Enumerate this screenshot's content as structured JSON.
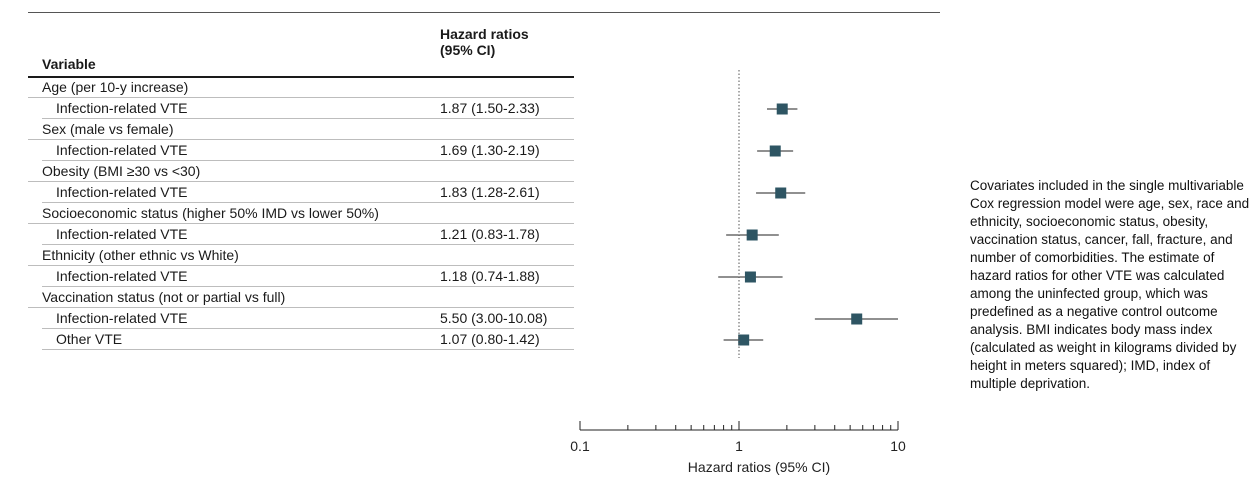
{
  "table": {
    "header_variable": "Variable",
    "header_hr_line1": "Hazard ratios",
    "header_hr_line2": "(95% CI)"
  },
  "chart_data": {
    "type": "forest",
    "xlabel": "Hazard ratios (95% CI)",
    "xscale": "log",
    "xlim": [
      0.1,
      10
    ],
    "xticks": [
      0.1,
      1,
      10
    ],
    "xtick_labels": [
      "0.1",
      "1",
      "10"
    ],
    "reference_line": 1,
    "marker_color": "#2e5563",
    "rows": [
      {
        "kind": "category",
        "label": "Age (per 10-y increase)"
      },
      {
        "kind": "estimate",
        "label": "Infection-related VTE",
        "text": "1.87 (1.50-2.33)",
        "hr": 1.87,
        "lo": 1.5,
        "hi": 2.33
      },
      {
        "kind": "category",
        "label": "Sex (male vs female)"
      },
      {
        "kind": "estimate",
        "label": "Infection-related VTE",
        "text": "1.69 (1.30-2.19)",
        "hr": 1.69,
        "lo": 1.3,
        "hi": 2.19
      },
      {
        "kind": "category",
        "label": "Obesity (BMI ≥30 vs <30)"
      },
      {
        "kind": "estimate",
        "label": "Infection-related VTE",
        "text": "1.83 (1.28-2.61)",
        "hr": 1.83,
        "lo": 1.28,
        "hi": 2.61
      },
      {
        "kind": "category",
        "label": "Socioeconomic status (higher 50% IMD vs lower 50%)"
      },
      {
        "kind": "estimate",
        "label": "Infection-related VTE",
        "text": "1.21 (0.83-1.78)",
        "hr": 1.21,
        "lo": 0.83,
        "hi": 1.78
      },
      {
        "kind": "category",
        "label": "Ethnicity (other ethnic vs White)"
      },
      {
        "kind": "estimate",
        "label": "Infection-related VTE",
        "text": "1.18 (0.74-1.88)",
        "hr": 1.18,
        "lo": 0.74,
        "hi": 1.88
      },
      {
        "kind": "category",
        "label": "Vaccination status (not or partial vs full)"
      },
      {
        "kind": "estimate",
        "label": "Infection-related VTE",
        "text": "5.50 (3.00-10.08)",
        "hr": 5.5,
        "lo": 3.0,
        "hi": 10.08
      },
      {
        "kind": "estimate",
        "label": "Other VTE",
        "text": "1.07 (0.80-1.42)",
        "hr": 1.07,
        "lo": 0.8,
        "hi": 1.42
      }
    ]
  },
  "note": {
    "text": "Covariates included in the single multivariable Cox regression model were age, sex, race and ethnicity, socioeconomic status, obesity, vaccination status, cancer, fall, fracture, and number of comorbidities. The estimate of hazard ratios for other VTE was calculated among the uninfected group, which was predefined as a negative control outcome analysis. BMI indicates body mass index (calculated as weight in kilograms divided by height in meters squared); IMD, index of multiple deprivation."
  }
}
